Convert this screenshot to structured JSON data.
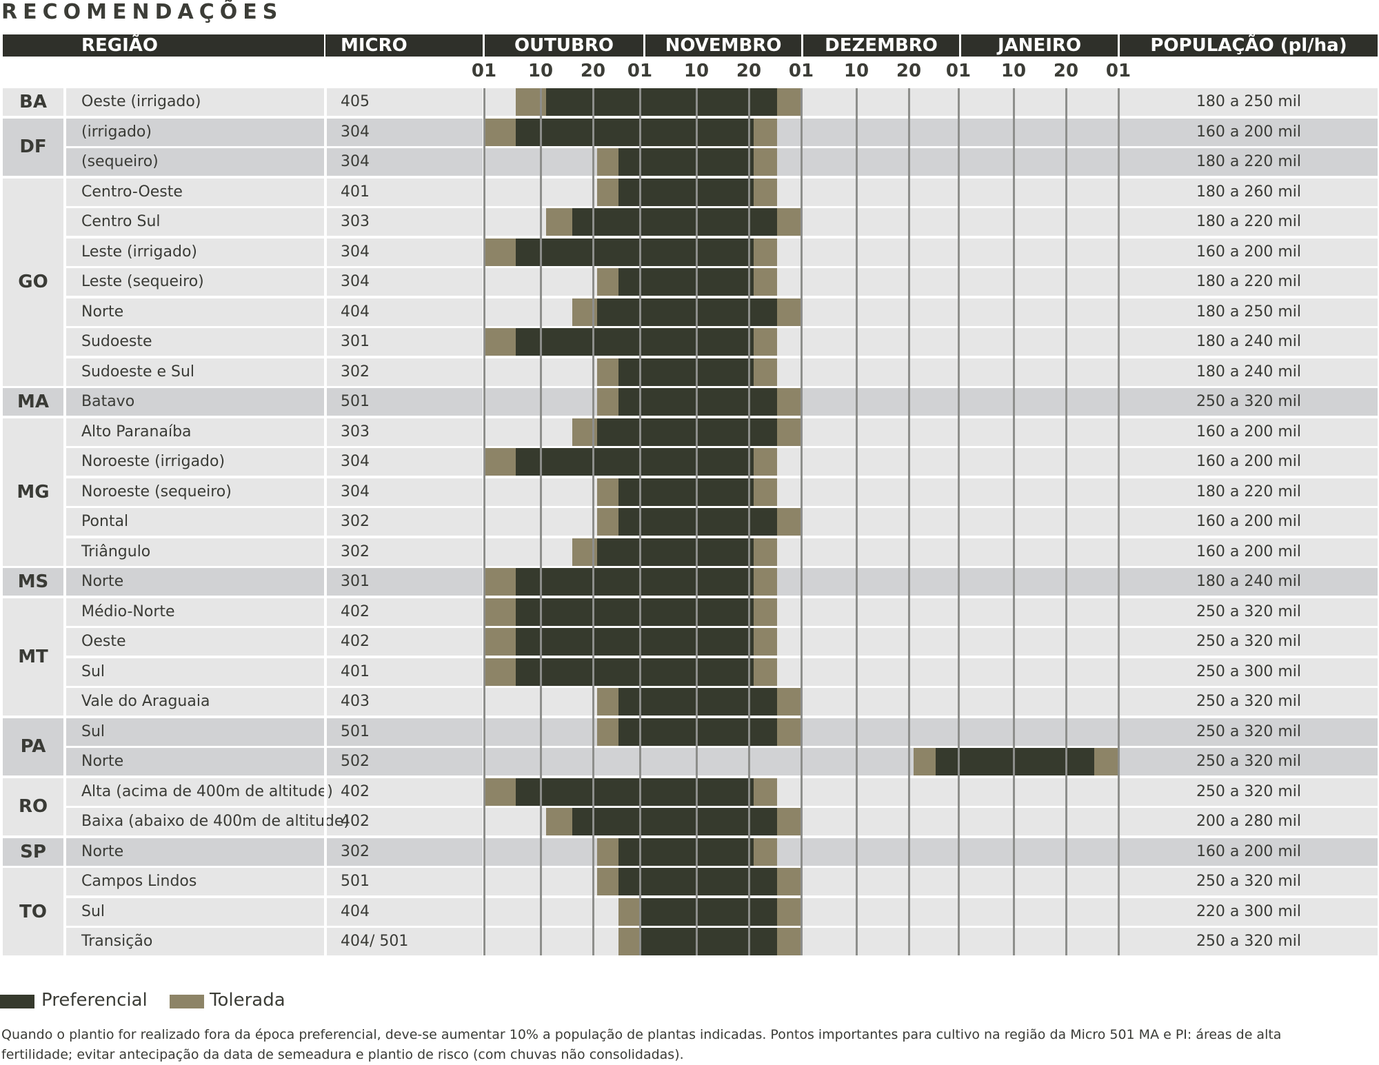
{
  "title": "RECOMENDAÇÕES",
  "headers": {
    "regiao": "REGIÃO",
    "micro": "MICRO",
    "months": [
      "OUTUBRO",
      "NOVEMBRO",
      "DEZEMBRO",
      "JANEIRO"
    ],
    "populacao": "POPULAÇÃO (pl/ha)"
  },
  "ticks": [
    "01",
    "10",
    "20",
    "01",
    "10",
    "20",
    "01",
    "10",
    "20",
    "01",
    "10",
    "20",
    "01"
  ],
  "colors": {
    "preferencial": "#363a2d",
    "tolerada": "#8d8467",
    "header_bg": "#2f302a",
    "row_light": "#e6e6e6",
    "row_dark": "#d1d2d4"
  },
  "states": [
    {
      "code": "BA",
      "rows": [
        {
          "regiao": "Oeste (irrigado)",
          "micro": "405",
          "populacao": "180 a 250 mil",
          "periods": [
            [
              "tolerada",
              "Out 06",
              "Out 11"
            ],
            [
              "preferencial",
              "Out 11",
              "Nov 26"
            ],
            [
              "tolerada",
              "Nov 26",
              "Dez 01"
            ]
          ]
        }
      ]
    },
    {
      "code": "DF",
      "rows": [
        {
          "regiao": "(irrigado)",
          "micro": "304",
          "populacao": "160 a 200 mil",
          "periods": [
            [
              "tolerada",
              "Out 01",
              "Out 06"
            ],
            [
              "preferencial",
              "Out 06",
              "Nov 21"
            ],
            [
              "tolerada",
              "Nov 21",
              "Nov 26"
            ]
          ]
        },
        {
          "regiao": "(sequeiro)",
          "micro": "304",
          "populacao": "180 a 220 mil",
          "periods": [
            [
              "tolerada",
              "Out 21",
              "Out 26"
            ],
            [
              "preferencial",
              "Out 26",
              "Nov 21"
            ],
            [
              "tolerada",
              "Nov 21",
              "Nov 26"
            ]
          ]
        }
      ]
    },
    {
      "code": "GO",
      "rows": [
        {
          "regiao": "Centro-Oeste",
          "micro": "401",
          "populacao": "180 a 260 mil",
          "periods": [
            [
              "tolerada",
              "Out 21",
              "Out 26"
            ],
            [
              "preferencial",
              "Out 26",
              "Nov 21"
            ],
            [
              "tolerada",
              "Nov 21",
              "Nov 26"
            ]
          ]
        },
        {
          "regiao": "Centro Sul",
          "micro": "303",
          "populacao": "180 a 220 mil",
          "periods": [
            [
              "tolerada",
              "Out 11",
              "Out 16"
            ],
            [
              "preferencial",
              "Out 16",
              "Nov 26"
            ],
            [
              "tolerada",
              "Nov 26",
              "Dez 01"
            ]
          ]
        },
        {
          "regiao": "Leste (irrigado)",
          "micro": "304",
          "populacao": "160 a 200 mil",
          "periods": [
            [
              "tolerada",
              "Out 01",
              "Out 06"
            ],
            [
              "preferencial",
              "Out 06",
              "Nov 21"
            ],
            [
              "tolerada",
              "Nov 21",
              "Nov 26"
            ]
          ]
        },
        {
          "regiao": "Leste (sequeiro)",
          "micro": "304",
          "populacao": "180 a 220 mil",
          "periods": [
            [
              "tolerada",
              "Out 21",
              "Out 26"
            ],
            [
              "preferencial",
              "Out 26",
              "Nov 21"
            ],
            [
              "tolerada",
              "Nov 21",
              "Nov 26"
            ]
          ]
        },
        {
          "regiao": "Norte",
          "micro": "404",
          "populacao": "180 a 250 mil",
          "periods": [
            [
              "tolerada",
              "Out 16",
              "Out 21"
            ],
            [
              "preferencial",
              "Out 21",
              "Nov 26"
            ],
            [
              "tolerada",
              "Nov 26",
              "Dez 01"
            ]
          ]
        },
        {
          "regiao": "Sudoeste",
          "micro": "301",
          "populacao": "180 a 240 mil",
          "periods": [
            [
              "tolerada",
              "Out 01",
              "Out 06"
            ],
            [
              "preferencial",
              "Out 06",
              "Nov 21"
            ],
            [
              "tolerada",
              "Nov 21",
              "Nov 26"
            ]
          ]
        },
        {
          "regiao": "Sudoeste e Sul",
          "micro": "302",
          "populacao": "180 a 240 mil",
          "periods": [
            [
              "tolerada",
              "Out 21",
              "Out 26"
            ],
            [
              "preferencial",
              "Out 26",
              "Nov 21"
            ],
            [
              "tolerada",
              "Nov 21",
              "Nov 26"
            ]
          ]
        }
      ]
    },
    {
      "code": "MA",
      "rows": [
        {
          "regiao": "Batavo",
          "micro": "501",
          "populacao": "250 a 320 mil",
          "periods": [
            [
              "tolerada",
              "Out 21",
              "Out 26"
            ],
            [
              "preferencial",
              "Out 26",
              "Nov 26"
            ],
            [
              "tolerada",
              "Nov 26",
              "Dez 01"
            ]
          ]
        }
      ]
    },
    {
      "code": "MG",
      "rows": [
        {
          "regiao": "Alto Paranaíba",
          "micro": "303",
          "populacao": "160 a 200 mil",
          "periods": [
            [
              "tolerada",
              "Out 16",
              "Out 21"
            ],
            [
              "preferencial",
              "Out 21",
              "Nov 26"
            ],
            [
              "tolerada",
              "Nov 26",
              "Dez 01"
            ]
          ]
        },
        {
          "regiao": "Noroeste (irrigado)",
          "micro": "304",
          "populacao": "160 a 200 mil",
          "periods": [
            [
              "tolerada",
              "Out 01",
              "Out 06"
            ],
            [
              "preferencial",
              "Out 06",
              "Nov 21"
            ],
            [
              "tolerada",
              "Nov 21",
              "Nov 26"
            ]
          ]
        },
        {
          "regiao": "Noroeste (sequeiro)",
          "micro": "304",
          "populacao": "180 a 220 mil",
          "periods": [
            [
              "tolerada",
              "Out 21",
              "Out 26"
            ],
            [
              "preferencial",
              "Out 26",
              "Nov 21"
            ],
            [
              "tolerada",
              "Nov 21",
              "Nov 26"
            ]
          ]
        },
        {
          "regiao": "Pontal",
          "micro": "302",
          "populacao": "160 a 200 mil",
          "periods": [
            [
              "tolerada",
              "Out 21",
              "Out 26"
            ],
            [
              "preferencial",
              "Out 26",
              "Nov 26"
            ],
            [
              "tolerada",
              "Nov 26",
              "Dez 01"
            ]
          ]
        },
        {
          "regiao": "Triângulo",
          "micro": "302",
          "populacao": "160 a 200 mil",
          "periods": [
            [
              "tolerada",
              "Out 16",
              "Out 21"
            ],
            [
              "preferencial",
              "Out 21",
              "Nov 21"
            ],
            [
              "tolerada",
              "Nov 21",
              "Nov 26"
            ]
          ]
        }
      ]
    },
    {
      "code": "MS",
      "rows": [
        {
          "regiao": "Norte",
          "micro": "301",
          "populacao": "180 a 240 mil",
          "periods": [
            [
              "tolerada",
              "Out 01",
              "Out 06"
            ],
            [
              "preferencial",
              "Out 06",
              "Nov 21"
            ],
            [
              "tolerada",
              "Nov 21",
              "Nov 26"
            ]
          ]
        }
      ]
    },
    {
      "code": "MT",
      "rows": [
        {
          "regiao": "Médio-Norte",
          "micro": "402",
          "populacao": "250 a 320 mil",
          "periods": [
            [
              "tolerada",
              "Out 01",
              "Out 06"
            ],
            [
              "preferencial",
              "Out 06",
              "Nov 21"
            ],
            [
              "tolerada",
              "Nov 21",
              "Nov 26"
            ]
          ]
        },
        {
          "regiao": "Oeste",
          "micro": "402",
          "populacao": "250 a 320 mil",
          "periods": [
            [
              "tolerada",
              "Out 01",
              "Out 06"
            ],
            [
              "preferencial",
              "Out 06",
              "Nov 21"
            ],
            [
              "tolerada",
              "Nov 21",
              "Nov 26"
            ]
          ]
        },
        {
          "regiao": "Sul",
          "micro": "401",
          "populacao": "250 a 300 mil",
          "periods": [
            [
              "tolerada",
              "Out 01",
              "Out 06"
            ],
            [
              "preferencial",
              "Out 06",
              "Nov 21"
            ],
            [
              "tolerada",
              "Nov 21",
              "Nov 26"
            ]
          ]
        },
        {
          "regiao": "Vale do Araguaia",
          "micro": "403",
          "populacao": "250 a 320 mil",
          "periods": [
            [
              "tolerada",
              "Out 21",
              "Out 26"
            ],
            [
              "preferencial",
              "Out 26",
              "Nov 26"
            ],
            [
              "tolerada",
              "Nov 26",
              "Dez 01"
            ]
          ]
        }
      ]
    },
    {
      "code": "PA",
      "rows": [
        {
          "regiao": "Sul",
          "micro": "501",
          "populacao": "250 a 320 mil",
          "periods": [
            [
              "tolerada",
              "Out 21",
              "Out 26"
            ],
            [
              "preferencial",
              "Out 26",
              "Nov 26"
            ],
            [
              "tolerada",
              "Nov 26",
              "Dez 01"
            ]
          ]
        },
        {
          "regiao": "Norte",
          "micro": "502",
          "populacao": "250 a 320 mil",
          "periods": [
            [
              "tolerada",
              "Dez 21",
              "Dez 26"
            ],
            [
              "preferencial",
              "Dez 26",
              "Jan 26"
            ],
            [
              "tolerada",
              "Jan 26",
              "Fev 01"
            ]
          ]
        }
      ]
    },
    {
      "code": "RO",
      "rows": [
        {
          "regiao": "Alta (acima de 400m de altitude)",
          "micro": "402",
          "populacao": "250 a 320 mil",
          "periods": [
            [
              "tolerada",
              "Out 01",
              "Out 06"
            ],
            [
              "preferencial",
              "Out 06",
              "Nov 21"
            ],
            [
              "tolerada",
              "Nov 21",
              "Nov 26"
            ]
          ]
        },
        {
          "regiao": "Baixa (abaixo de 400m de altitude)",
          "micro": "402",
          "populacao": "200 a 280 mil",
          "periods": [
            [
              "tolerada",
              "Out 11",
              "Out 16"
            ],
            [
              "preferencial",
              "Out 16",
              "Nov 26"
            ],
            [
              "tolerada",
              "Nov 26",
              "Dez 01"
            ]
          ]
        }
      ]
    },
    {
      "code": "SP",
      "rows": [
        {
          "regiao": "Norte",
          "micro": "302",
          "populacao": "160 a 200 mil",
          "periods": [
            [
              "tolerada",
              "Out 21",
              "Out 26"
            ],
            [
              "preferencial",
              "Out 26",
              "Nov 21"
            ],
            [
              "tolerada",
              "Nov 21",
              "Nov 26"
            ]
          ]
        }
      ]
    },
    {
      "code": "TO",
      "rows": [
        {
          "regiao": "Campos Lindos",
          "micro": "501",
          "populacao": "250 a 320 mil",
          "periods": [
            [
              "tolerada",
              "Out 21",
              "Out 26"
            ],
            [
              "preferencial",
              "Out 26",
              "Nov 26"
            ],
            [
              "tolerada",
              "Nov 26",
              "Dez 01"
            ]
          ]
        },
        {
          "regiao": "Sul",
          "micro": "404",
          "populacao": "220 a 300 mil",
          "periods": [
            [
              "tolerada",
              "Out 26",
              "Nov 01"
            ],
            [
              "preferencial",
              "Nov 01",
              "Nov 26"
            ],
            [
              "tolerada",
              "Nov 26",
              "Dez 01"
            ]
          ]
        },
        {
          "regiao": "Transição",
          "micro": "404/ 501",
          "populacao": "250 a 320 mil",
          "periods": [
            [
              "tolerada",
              "Out 26",
              "Nov 01"
            ],
            [
              "preferencial",
              "Nov 01",
              "Nov 26"
            ],
            [
              "tolerada",
              "Nov 26",
              "Dez 01"
            ]
          ]
        }
      ]
    }
  ],
  "legend": [
    {
      "key": "preferencial",
      "label": "Preferencial"
    },
    {
      "key": "tolerada",
      "label": "Tolerada"
    }
  ],
  "note": "Quando o plantio for realizado fora da época preferencial, deve-se aumentar 10% a população de plantas indicadas. Pontos importantes para cultivo na região da Micro 501 MA e PI: áreas de alta fertilidade; evitar antecipação da data de semeadura e plantio de risco (com chuvas não consolidadas)."
}
